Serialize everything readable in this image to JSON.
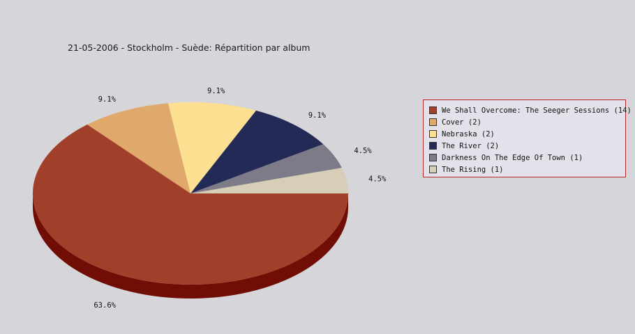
{
  "chart_data": {
    "type": "pie",
    "title": "21-05-2006 - Stockholm - Suède:  Répartition par album",
    "legend_position": "right",
    "slices": [
      {
        "label": "We Shall Overcome: The Seeger Sessions (14)",
        "value": 14,
        "percent_label": "63.6%",
        "color": "#a1402a",
        "side_color": "#700d04"
      },
      {
        "label": "Cover (2)",
        "value": 2,
        "percent_label": "9.1%",
        "color": "#dfa96c",
        "side_color": "#b07a40"
      },
      {
        "label": "Nebraska (2)",
        "value": 2,
        "percent_label": "9.1%",
        "color": "#fddf91",
        "side_color": "#c9ae62"
      },
      {
        "label": "The River (2)",
        "value": 2,
        "percent_label": "9.1%",
        "color": "#232a55",
        "side_color": "#10153a"
      },
      {
        "label": "Darkness On The Edge Of Town (1)",
        "value": 1,
        "percent_label": "4.5%",
        "color": "#7d7b87",
        "side_color": "#55535e"
      },
      {
        "label": "The Rising (1)",
        "value": 1,
        "percent_label": "4.5%",
        "color": "#d8cdb6",
        "side_color": "#a89e88"
      }
    ]
  }
}
